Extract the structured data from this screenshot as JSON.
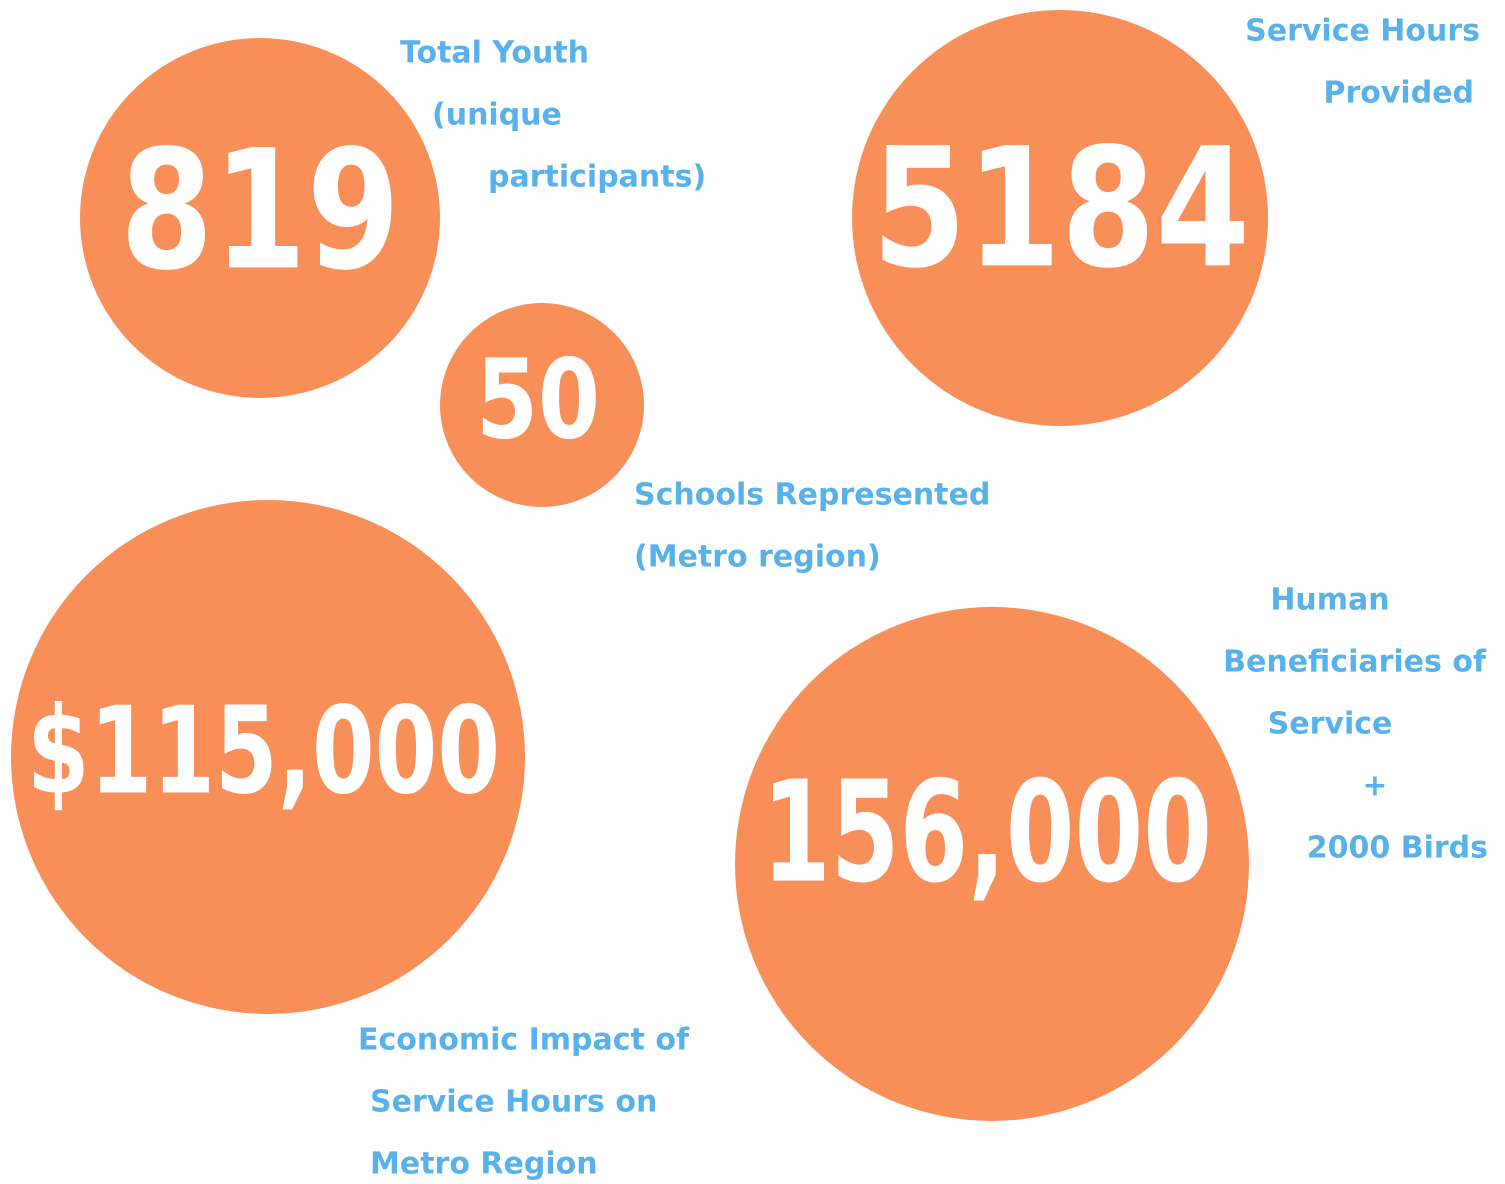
{
  "stats": [
    {
      "value": "819",
      "label": [
        "Total Youth",
        "(unique",
        "participants)"
      ]
    },
    {
      "value": "5184",
      "label": [
        "Service Hours",
        "Provided"
      ]
    },
    {
      "value": "50",
      "label": [
        "Schools Represented",
        "(Metro region)"
      ]
    },
    {
      "value": "$115,000",
      "label": [
        "Economic Impact of",
        "Service Hours on",
        "Metro Region"
      ]
    },
    {
      "value": "156,000",
      "label": [
        "Human",
        "Beneficiaries of",
        "Service",
        "+",
        "2000 Birds"
      ]
    }
  ]
}
